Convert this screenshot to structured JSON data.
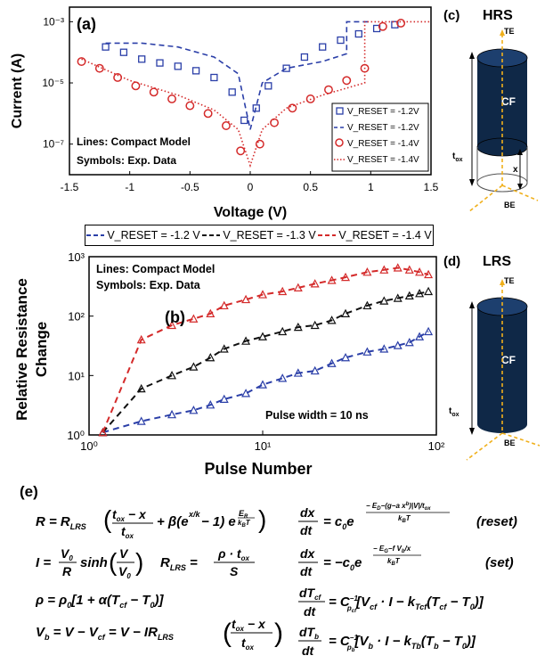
{
  "panel_a": {
    "label": "(a)",
    "ylabel": "Current (A)",
    "xlabel": "Voltage (V)",
    "note1": "Lines: Compact Model",
    "note2": "Symbols: Exp. Data",
    "x_ticks": [
      "-1.5",
      "-1",
      "-0.5",
      "0",
      "0.5",
      "1",
      "1.5"
    ],
    "y_ticks": [
      "10⁻³",
      "10⁻⁵",
      "10⁻⁷"
    ],
    "legend": [
      {
        "text": "V_RESET = -1.2V",
        "style": "square"
      },
      {
        "text": "V_RESET = -1.2V",
        "style": "dash"
      },
      {
        "text": "V_RESET = -1.4V",
        "style": "circle"
      },
      {
        "text": "V_RESET = -1.4V",
        "style": "dot"
      }
    ]
  },
  "panel_b": {
    "label": "(b)",
    "ylabel1": "Relative Resistance",
    "ylabel2": "Change",
    "xlabel": "Pulse Number",
    "note1": "Lines: Compact Model",
    "note2": "Symbols: Exp. Data",
    "note3": "Pulse width = 10 ns",
    "x_ticks": [
      "10⁰",
      "10¹",
      "10²"
    ],
    "y_ticks": [
      "10⁰",
      "10¹",
      "10²",
      "10³"
    ],
    "legend": [
      {
        "text": "V_RESET = -1.2 V",
        "color": "#2b3fa8"
      },
      {
        "text": "V_RESET = -1.3 V",
        "color": "#111111"
      },
      {
        "text": "V_RESET = -1.4 V",
        "color": "#d42a2a"
      }
    ]
  },
  "panel_c": {
    "label": "(c)",
    "title": "HRS",
    "te": "TE",
    "be": "BE",
    "cf": "CF",
    "tox": "t_ox",
    "x": "x"
  },
  "panel_d": {
    "label": "(d)",
    "title": "LRS",
    "te": "TE",
    "be": "BE",
    "cf": "CF",
    "tox": "t_ox"
  },
  "panel_e": {
    "label": "(e)"
  },
  "colors": {
    "blue": "#2b3fa8",
    "red": "#d42a2a",
    "black": "#111111",
    "cyl_dark": "#0f2847"
  },
  "chart_data": [
    {
      "type": "line",
      "panel": "(a)",
      "xlabel": "Voltage (V)",
      "ylabel": "Current (A)",
      "xlim": [
        -1.5,
        1.5
      ],
      "ylim": [
        1e-08,
        0.003
      ],
      "y_scale": "log",
      "series": [
        {
          "name": "V_RESET = -1.2V (Exp.)",
          "marker": "square",
          "color": "#2b3fa8",
          "x": [
            -1.2,
            -1.05,
            -0.9,
            -0.75,
            -0.6,
            -0.45,
            -0.3,
            -0.15,
            -0.05,
            0.05,
            0.15,
            0.3,
            0.45,
            0.6,
            0.75,
            0.9,
            1.05,
            1.2
          ],
          "y": [
            0.00015,
            0.0001,
            6e-05,
            4.5e-05,
            3.5e-05,
            2.5e-05,
            1.5e-05,
            5e-06,
            6e-07,
            1.5e-06,
            8e-06,
            3e-05,
            7e-05,
            0.00015,
            0.00025,
            0.0004,
            0.0006,
            0.0008
          ]
        },
        {
          "name": "V_RESET = -1.2V (Model)",
          "style": "dash",
          "color": "#2b3fa8",
          "x": [
            -1.2,
            -0.9,
            -0.6,
            -0.3,
            -0.1,
            0,
            0.1,
            0.3,
            0.6,
            0.8,
            0.8,
            1.0
          ],
          "y": [
            0.0002,
            0.0002,
            0.00015,
            7e-05,
            2e-05,
            3e-07,
            1e-05,
            3e-05,
            5e-05,
            9e-05,
            0.001,
            0.001
          ]
        },
        {
          "name": "V_RESET = -1.4V (Exp.)",
          "marker": "circle",
          "color": "#d42a2a",
          "x": [
            -1.4,
            -1.25,
            -1.1,
            -0.95,
            -0.8,
            -0.65,
            -0.5,
            -0.35,
            -0.2,
            -0.08,
            0.08,
            0.2,
            0.35,
            0.5,
            0.65,
            0.8,
            0.95,
            1.1,
            1.25
          ],
          "y": [
            5e-05,
            3e-05,
            1.5e-05,
            8e-06,
            5e-06,
            3e-06,
            1.8e-06,
            1e-06,
            4e-07,
            6e-08,
            1e-07,
            5e-07,
            1.5e-06,
            3e-06,
            6e-06,
            1.2e-05,
            3e-05,
            0.0007,
            0.0009
          ]
        },
        {
          "name": "V_RESET = -1.4V (Model)",
          "style": "dot",
          "color": "#d42a2a",
          "x": [
            -1.4,
            -1.0,
            -0.6,
            -0.3,
            -0.1,
            0,
            0.1,
            0.3,
            0.6,
            0.95,
            0.95,
            1.5
          ],
          "y": [
            6e-05,
            1.2e-05,
            4e-06,
            1.3e-06,
            3e-07,
            2e-08,
            3e-07,
            1.5e-06,
            4e-06,
            1e-05,
            0.001,
            0.001
          ]
        }
      ]
    },
    {
      "type": "scatter",
      "panel": "(b)",
      "xlabel": "Pulse Number",
      "ylabel": "Relative Resistance Change",
      "x_scale": "log",
      "y_scale": "log",
      "xlim": [
        1,
        100
      ],
      "ylim": [
        1,
        1000
      ],
      "series": [
        {
          "name": "V_RESET = -1.2 V",
          "color": "#2b3fa8",
          "x": [
            1.2,
            2,
            3,
            4,
            5,
            6,
            8,
            10,
            13,
            16,
            20,
            25,
            30,
            40,
            50,
            60,
            70,
            80,
            90
          ],
          "y": [
            1.1,
            1.7,
            2.2,
            2.6,
            3.2,
            4,
            5,
            7,
            9,
            11,
            12,
            16,
            20,
            25,
            28,
            32,
            36,
            45,
            55
          ]
        },
        {
          "name": "V_RESET = -1.3 V",
          "color": "#111111",
          "x": [
            1.2,
            2,
            3,
            4,
            5,
            6,
            8,
            10,
            13,
            16,
            20,
            25,
            30,
            40,
            50,
            60,
            70,
            80,
            90
          ],
          "y": [
            1.1,
            6,
            10,
            14,
            20,
            28,
            38,
            45,
            55,
            65,
            70,
            85,
            110,
            150,
            180,
            200,
            220,
            240,
            260
          ]
        },
        {
          "name": "V_RESET = -1.4 V",
          "color": "#d42a2a",
          "x": [
            1.2,
            2,
            3,
            4,
            5,
            6,
            8,
            10,
            13,
            16,
            20,
            25,
            30,
            40,
            50,
            60,
            70,
            80,
            90
          ],
          "y": [
            1.1,
            40,
            70,
            90,
            110,
            150,
            190,
            230,
            260,
            300,
            350,
            400,
            450,
            550,
            600,
            650,
            600,
            550,
            500
          ]
        }
      ]
    }
  ]
}
